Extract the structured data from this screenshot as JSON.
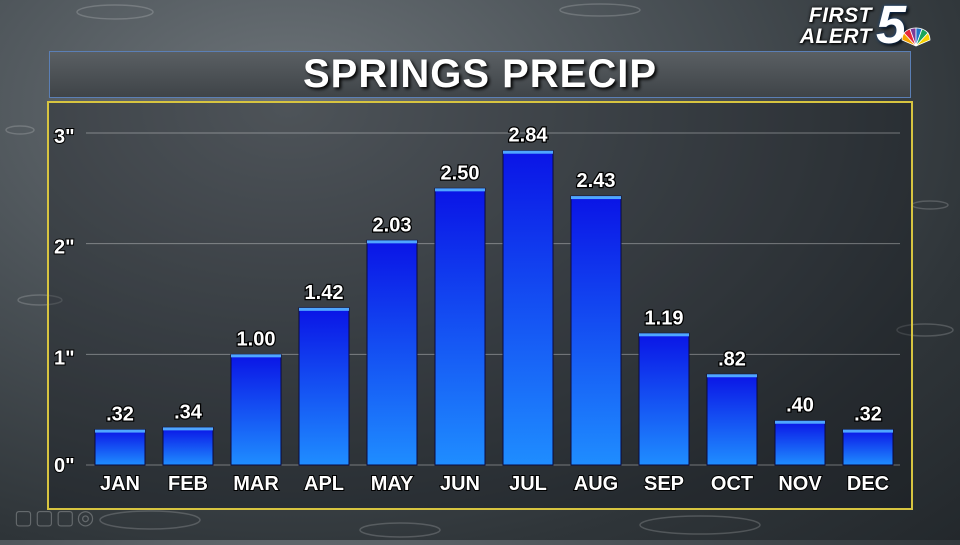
{
  "header": {
    "title": "SPRINGS PRECIP",
    "logo_line1": "FIRST",
    "logo_line2": "ALERT",
    "logo_number": "5"
  },
  "colors": {
    "bar_top": "#0a14e6",
    "bar_bottom": "#1f8dff",
    "frame": "#d7c440",
    "title_border": "#5b7fb5"
  },
  "chart_data": {
    "type": "bar",
    "title": "SPRINGS PRECIP",
    "categories": [
      "JAN",
      "FEB",
      "MAR",
      "APL",
      "MAY",
      "JUN",
      "JUL",
      "AUG",
      "SEP",
      "OCT",
      "NOV",
      "DEC"
    ],
    "values": [
      0.32,
      0.34,
      1.0,
      1.42,
      2.03,
      2.5,
      2.84,
      2.43,
      1.19,
      0.82,
      0.4,
      0.32
    ],
    "value_labels": [
      ".32",
      ".34",
      "1.00",
      "1.42",
      "2.03",
      "2.50",
      "2.84",
      "2.43",
      "1.19",
      ".82",
      ".40",
      ".32"
    ],
    "yticks": [
      0,
      1,
      2,
      3
    ],
    "ytick_labels": [
      "0\"",
      "1\"",
      "2\"",
      "3\""
    ],
    "ylim": [
      0,
      3
    ],
    "grid": true,
    "xlabel": "",
    "ylabel": ""
  }
}
